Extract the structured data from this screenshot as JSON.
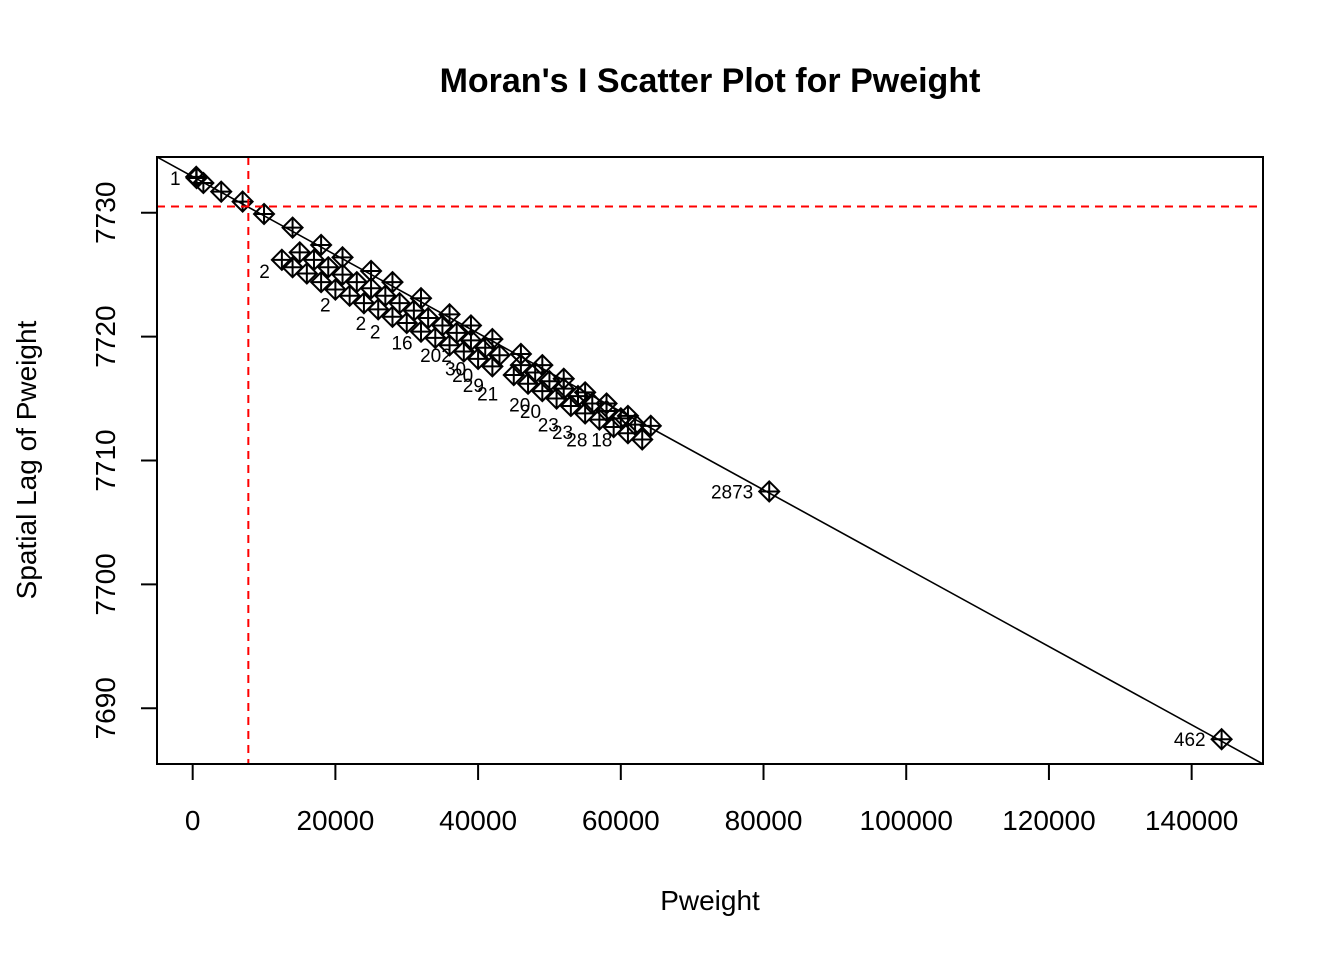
{
  "chart_data": {
    "type": "scatter",
    "title": "Moran's I Scatter Plot for Pweight",
    "xlabel": "Pweight",
    "ylabel": "Spatial Lag of Pweight",
    "xlim": [
      -5000,
      150000
    ],
    "ylim": [
      7685.5,
      7734.5
    ],
    "x_ticks": [
      0,
      20000,
      40000,
      60000,
      80000,
      100000,
      120000,
      140000
    ],
    "y_ticks": [
      7690,
      7700,
      7710,
      7720,
      7730
    ],
    "x_tick_labels": [
      "0",
      "20000",
      "40000",
      "60000",
      "80000",
      "100000",
      "120000",
      "140000"
    ],
    "y_tick_labels": [
      "7690",
      "7700",
      "7710",
      "7720",
      "7730"
    ],
    "mean_x": 7800,
    "mean_y": 7730.5,
    "regression_line": {
      "x": [
        -5000,
        150000
      ],
      "y": [
        7734.5,
        7685.5
      ]
    },
    "colors": {
      "points": "#000000",
      "regression": "#000000",
      "mean_lines": "#ff0000"
    },
    "labeled_points": [
      {
        "label": "1",
        "x": 550,
        "y": 7732.8
      },
      {
        "label": "2873",
        "x": 80800,
        "y": 7707.5
      },
      {
        "label": "462",
        "x": 144200,
        "y": 7687.5
      }
    ],
    "upper_band": {
      "x": [
        500,
        1500,
        4000,
        7000,
        10000,
        14000,
        18000,
        21000,
        25000,
        28000,
        32000,
        36000,
        39000,
        42000,
        46000,
        49000,
        52000,
        55000,
        58000,
        61000,
        64200
      ],
      "y": [
        7732.9,
        7732.4,
        7731.7,
        7730.9,
        7729.9,
        7728.8,
        7727.4,
        7726.4,
        7725.3,
        7724.4,
        7723.1,
        7721.8,
        7720.9,
        7719.8,
        7718.6,
        7717.7,
        7716.6,
        7715.5,
        7714.6,
        7713.6,
        7712.8
      ]
    },
    "lower_band": {
      "x": [
        12500,
        14000,
        16000,
        18000,
        20000,
        22000,
        24000,
        26000,
        28000,
        30000,
        32000,
        34000,
        36000,
        38000,
        40000,
        42000,
        45000,
        47000,
        49000,
        51000,
        53000,
        55000,
        57000,
        59000,
        61000,
        63000
      ],
      "y": [
        7726.2,
        7725.6,
        7725.1,
        7724.4,
        7723.8,
        7723.3,
        7722.7,
        7722.2,
        7721.6,
        7721.1,
        7720.4,
        7719.9,
        7719.3,
        7718.8,
        7718.2,
        7717.6,
        7716.9,
        7716.2,
        7715.6,
        7715.0,
        7714.4,
        7713.8,
        7713.3,
        7712.7,
        7712.2,
        7711.7
      ]
    },
    "mid_band": {
      "x": [
        15000,
        17000,
        19000,
        21000,
        23000,
        25000,
        27000,
        29000,
        31000,
        33000,
        35000,
        37000,
        39000,
        41000,
        43000,
        46000,
        48000,
        50000,
        52000,
        54000,
        56000,
        58000,
        60000,
        62000
      ],
      "y": [
        7726.8,
        7726.2,
        7725.6,
        7725.0,
        7724.4,
        7723.9,
        7723.3,
        7722.7,
        7722.1,
        7721.5,
        7720.9,
        7720.3,
        7719.7,
        7719.1,
        7718.5,
        7717.7,
        7717.1,
        7716.4,
        7715.8,
        7715.2,
        7714.6,
        7714.0,
        7713.4,
        7712.9
      ]
    },
    "cluster_labels": [
      {
        "label": "2",
        "x": 12500,
        "y": 7726.2
      },
      {
        "label": "2",
        "x": 21000,
        "y": 7723.5
      },
      {
        "label": "2",
        "x": 26000,
        "y": 7722.0
      },
      {
        "label": "2",
        "x": 28000,
        "y": 7721.3
      },
      {
        "label": "16",
        "x": 32500,
        "y": 7720.4
      },
      {
        "label": "202",
        "x": 38000,
        "y": 7719.4
      },
      {
        "label": "30",
        "x": 40000,
        "y": 7718.3
      },
      {
        "label": "20",
        "x": 41000,
        "y": 7717.8
      },
      {
        "label": "29",
        "x": 42500,
        "y": 7717.0
      },
      {
        "label": "21",
        "x": 44500,
        "y": 7716.3
      },
      {
        "label": "20",
        "x": 49000,
        "y": 7715.4
      },
      {
        "label": "20",
        "x": 50500,
        "y": 7714.9
      },
      {
        "label": "23",
        "x": 53000,
        "y": 7713.8
      },
      {
        "label": "23",
        "x": 55000,
        "y": 7713.2
      },
      {
        "label": "28",
        "x": 57000,
        "y": 7712.6
      },
      {
        "label": "18",
        "x": 60500,
        "y": 7712.6
      }
    ]
  }
}
